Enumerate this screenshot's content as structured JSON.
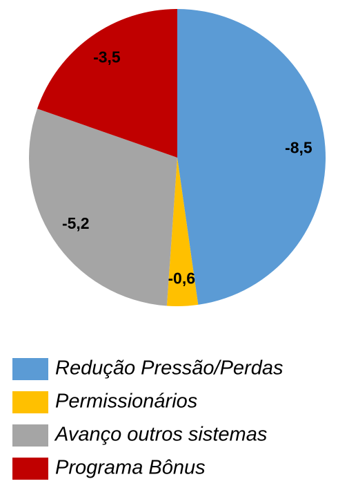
{
  "chart_data": {
    "type": "pie",
    "categories": [
      "Redução Pressão/Perdas",
      "Permissionários",
      "Avanço outros sistemas",
      "Programa Bônus"
    ],
    "values": [
      -8.5,
      -0.6,
      -5.2,
      -3.5
    ],
    "value_labels": [
      "-8,5",
      "-0,6",
      "-5,2",
      "-3,5"
    ],
    "colors": [
      "#5b9bd5",
      "#ffc000",
      "#a5a5a5",
      "#c00000"
    ],
    "legend": "bottom"
  }
}
